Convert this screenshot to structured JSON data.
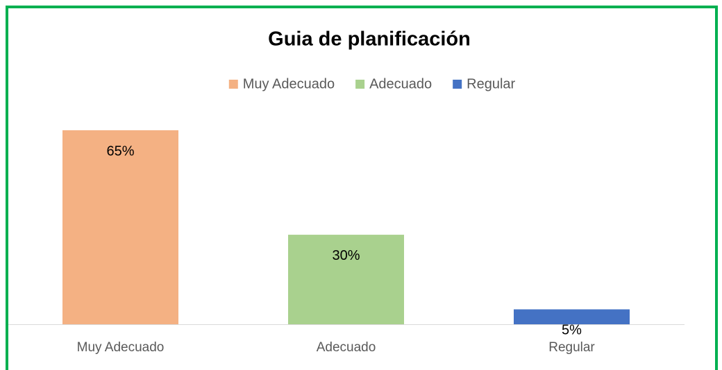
{
  "chart_data": {
    "type": "bar",
    "title": "Guia de planificación",
    "categories": [
      "Muy Adecuado",
      "Adecuado",
      "Regular"
    ],
    "values": [
      65,
      30,
      5
    ],
    "value_labels": [
      "65%",
      "30%",
      "5%"
    ],
    "colors": [
      "#f4b183",
      "#a9d18e",
      "#4472c4"
    ],
    "legend": "top"
  }
}
